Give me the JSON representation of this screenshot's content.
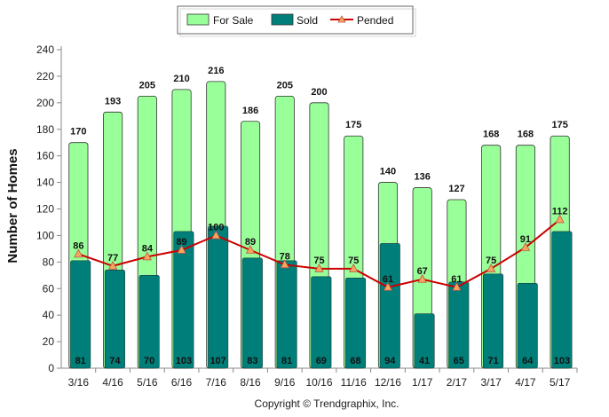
{
  "chart_data": {
    "type": "bar",
    "categories": [
      "3/16",
      "4/16",
      "5/16",
      "6/16",
      "7/16",
      "8/16",
      "9/16",
      "10/16",
      "11/16",
      "12/16",
      "1/17",
      "2/17",
      "3/17",
      "4/17",
      "5/17"
    ],
    "series": [
      {
        "name": "For Sale",
        "type": "bar",
        "color": "#99ff99",
        "values": [
          170,
          193,
          205,
          210,
          216,
          186,
          205,
          200,
          175,
          140,
          136,
          127,
          168,
          168,
          175
        ]
      },
      {
        "name": "Sold",
        "type": "bar",
        "color": "#007f7a",
        "values": [
          81,
          74,
          70,
          103,
          107,
          83,
          81,
          69,
          68,
          94,
          41,
          65,
          71,
          64,
          103
        ]
      },
      {
        "name": "Pended",
        "type": "line",
        "color": "#cc0000",
        "marker_color": "#f5a85a",
        "values": [
          86,
          77,
          84,
          89,
          100,
          89,
          78,
          75,
          75,
          61,
          67,
          61,
          75,
          91,
          112
        ]
      }
    ],
    "ylabel": "Number of Homes",
    "ylim": [
      0,
      240
    ],
    "yticks": [
      0,
      20,
      40,
      60,
      80,
      100,
      120,
      140,
      160,
      180,
      200,
      220,
      240
    ],
    "legend_position": "top-center",
    "grid": false
  },
  "footer": {
    "copyright": "Copyright © Trendgraphix, Inc."
  }
}
